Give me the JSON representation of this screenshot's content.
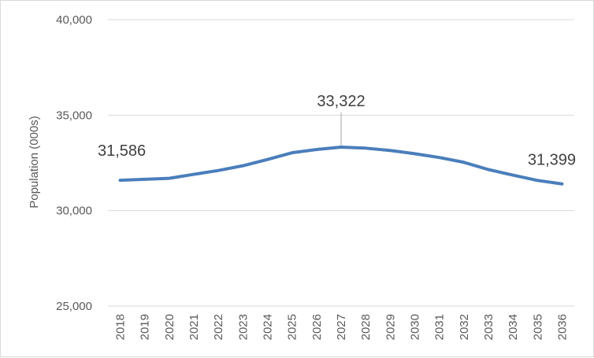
{
  "chart_data": {
    "type": "line",
    "title": "",
    "xlabel": "",
    "ylabel": "Population (000s)",
    "ylim": [
      25000,
      40000
    ],
    "yticks": [
      25000,
      30000,
      35000,
      40000
    ],
    "ytick_labels": [
      "25,000",
      "30,000",
      "35,000",
      "40,000"
    ],
    "grid": true,
    "legend": "none",
    "line_color": "#4a7ebb",
    "grid_color": "#d9d9d9",
    "categories": [
      "2018",
      "2019",
      "2020",
      "2021",
      "2022",
      "2023",
      "2024",
      "2025",
      "2026",
      "2027",
      "2028",
      "2029",
      "2030",
      "2031",
      "2032",
      "2033",
      "2034",
      "2035",
      "2036"
    ],
    "series": [
      {
        "name": "",
        "values": [
          31586,
          31640,
          31690,
          31900,
          32100,
          32350,
          32680,
          33030,
          33200,
          33322,
          33270,
          33150,
          32980,
          32780,
          32530,
          32150,
          31860,
          31580,
          31399
        ]
      }
    ],
    "data_labels": [
      {
        "category": "2018",
        "text": "31,586"
      },
      {
        "category": "2027",
        "text": "33,322"
      },
      {
        "category": "2036",
        "text": "31,399"
      }
    ]
  }
}
